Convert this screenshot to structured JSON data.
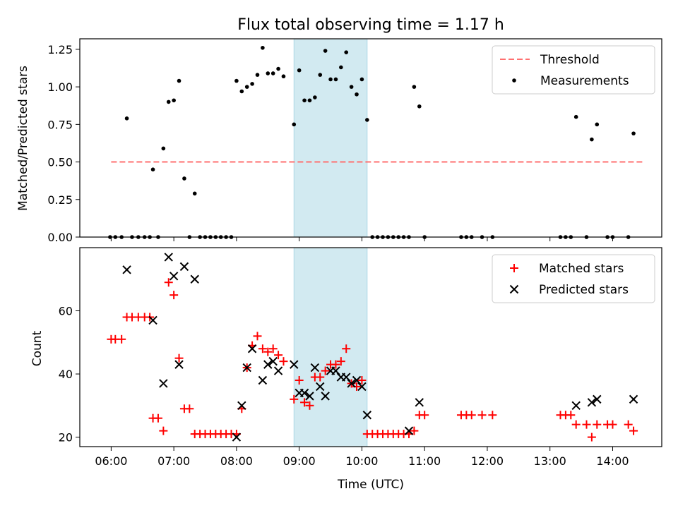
{
  "chart_data": [
    {
      "type": "scatter",
      "title": "Flux total observing time = 1.17 h",
      "xlabel": "",
      "ylabel": "Matched/Predicted stars",
      "ylim": [
        0,
        1.32
      ],
      "yticks": [
        0.0,
        0.25,
        0.5,
        0.75,
        1.0,
        1.25
      ],
      "ytick_labels": [
        "0.00",
        "0.25",
        "0.50",
        "0.75",
        "1.00",
        "1.25"
      ],
      "shaded_span": {
        "start": "08:55",
        "end": "10:05",
        "color": "#add8e6"
      },
      "threshold": {
        "name": "Threshold",
        "value": 0.5,
        "from": "06:00",
        "to": "14:30",
        "color": "#ff7070"
      },
      "series": [
        {
          "name": "Measurements",
          "color": "#000000",
          "points": [
            [
              "05:59",
              0
            ],
            [
              "06:04",
              0
            ],
            [
              "06:10",
              0
            ],
            [
              "06:15",
              0.79
            ],
            [
              "06:20",
              0
            ],
            [
              "06:26",
              0
            ],
            [
              "06:32",
              0
            ],
            [
              "06:37",
              0
            ],
            [
              "06:40",
              0.45
            ],
            [
              "06:45",
              0
            ],
            [
              "06:50",
              0.59
            ],
            [
              "06:55",
              0.9
            ],
            [
              "07:00",
              0.91
            ],
            [
              "07:05",
              1.04
            ],
            [
              "07:10",
              0.39
            ],
            [
              "07:15",
              0
            ],
            [
              "07:20",
              0.29
            ],
            [
              "07:25",
              0
            ],
            [
              "07:30",
              0
            ],
            [
              "07:35",
              0
            ],
            [
              "07:40",
              0
            ],
            [
              "07:45",
              0
            ],
            [
              "07:50",
              0
            ],
            [
              "07:55",
              0
            ],
            [
              "08:00",
              1.04
            ],
            [
              "08:05",
              0.97
            ],
            [
              "08:10",
              1.0
            ],
            [
              "08:15",
              1.02
            ],
            [
              "08:20",
              1.08
            ],
            [
              "08:25",
              1.26
            ],
            [
              "08:30",
              1.09
            ],
            [
              "08:35",
              1.09
            ],
            [
              "08:40",
              1.12
            ],
            [
              "08:45",
              1.07
            ],
            [
              "08:55",
              0.75
            ],
            [
              "09:00",
              1.11
            ],
            [
              "09:05",
              0.91
            ],
            [
              "09:10",
              0.91
            ],
            [
              "09:15",
              0.93
            ],
            [
              "09:20",
              1.08
            ],
            [
              "09:25",
              1.24
            ],
            [
              "09:30",
              1.05
            ],
            [
              "09:35",
              1.05
            ],
            [
              "09:40",
              1.13
            ],
            [
              "09:45",
              1.23
            ],
            [
              "09:50",
              1.0
            ],
            [
              "09:55",
              0.95
            ],
            [
              "10:00",
              1.05
            ],
            [
              "10:05",
              0.78
            ],
            [
              "10:10",
              0
            ],
            [
              "10:15",
              0
            ],
            [
              "10:20",
              0
            ],
            [
              "10:25",
              0
            ],
            [
              "10:30",
              0
            ],
            [
              "10:35",
              0
            ],
            [
              "10:40",
              0
            ],
            [
              "10:45",
              0
            ],
            [
              "10:50",
              1.0
            ],
            [
              "10:55",
              0.87
            ],
            [
              "11:00",
              0
            ],
            [
              "11:35",
              0
            ],
            [
              "11:40",
              0
            ],
            [
              "11:45",
              0
            ],
            [
              "11:55",
              0
            ],
            [
              "12:05",
              0
            ],
            [
              "13:10",
              0
            ],
            [
              "13:15",
              0
            ],
            [
              "13:20",
              0
            ],
            [
              "13:25",
              0.8
            ],
            [
              "13:35",
              0
            ],
            [
              "13:40",
              0.65
            ],
            [
              "13:45",
              0.75
            ],
            [
              "13:55",
              0
            ],
            [
              "14:00",
              0
            ],
            [
              "14:15",
              0
            ],
            [
              "14:20",
              0.69
            ]
          ]
        }
      ],
      "legend": {
        "entries": [
          "Threshold",
          "Measurements"
        ],
        "location": "upper right"
      }
    },
    {
      "type": "scatter",
      "title": "",
      "xlabel": "Time (UTC)",
      "ylabel": "Count",
      "xlim": [
        "05:30",
        "14:47"
      ],
      "xticks": [
        "06:00",
        "07:00",
        "08:00",
        "09:00",
        "10:00",
        "11:00",
        "12:00",
        "13:00",
        "14:00"
      ],
      "ylim": [
        17,
        80
      ],
      "yticks": [
        20,
        40,
        60
      ],
      "ytick_labels": [
        "20",
        "40",
        "60"
      ],
      "shaded_span": {
        "start": "08:55",
        "end": "10:05",
        "color": "#add8e6"
      },
      "series": [
        {
          "name": "Matched stars",
          "marker": "+",
          "color": "#ff0000",
          "points": [
            [
              "06:00",
              51
            ],
            [
              "06:04",
              51
            ],
            [
              "06:10",
              51
            ],
            [
              "06:15",
              58
            ],
            [
              "06:20",
              58
            ],
            [
              "06:26",
              58
            ],
            [
              "06:32",
              58
            ],
            [
              "06:37",
              58
            ],
            [
              "06:40",
              26
            ],
            [
              "06:45",
              26
            ],
            [
              "06:50",
              22
            ],
            [
              "06:55",
              69
            ],
            [
              "07:00",
              65
            ],
            [
              "07:05",
              45
            ],
            [
              "07:10",
              29
            ],
            [
              "07:15",
              29
            ],
            [
              "07:20",
              21
            ],
            [
              "07:25",
              21
            ],
            [
              "07:30",
              21
            ],
            [
              "07:35",
              21
            ],
            [
              "07:40",
              21
            ],
            [
              "07:45",
              21
            ],
            [
              "07:50",
              21
            ],
            [
              "07:55",
              21
            ],
            [
              "08:00",
              21
            ],
            [
              "08:05",
              29
            ],
            [
              "08:10",
              42
            ],
            [
              "08:15",
              49
            ],
            [
              "08:20",
              52
            ],
            [
              "08:25",
              48
            ],
            [
              "08:30",
              47
            ],
            [
              "08:35",
              48
            ],
            [
              "08:40",
              46
            ],
            [
              "08:45",
              44
            ],
            [
              "08:55",
              32
            ],
            [
              "09:00",
              38
            ],
            [
              "09:05",
              31
            ],
            [
              "09:10",
              30
            ],
            [
              "09:15",
              39
            ],
            [
              "09:20",
              39
            ],
            [
              "09:25",
              41
            ],
            [
              "09:30",
              43
            ],
            [
              "09:35",
              43
            ],
            [
              "09:40",
              44
            ],
            [
              "09:45",
              48
            ],
            [
              "09:50",
              37
            ],
            [
              "09:55",
              36
            ],
            [
              "10:00",
              38
            ],
            [
              "10:05",
              21
            ],
            [
              "10:10",
              21
            ],
            [
              "10:15",
              21
            ],
            [
              "10:20",
              21
            ],
            [
              "10:25",
              21
            ],
            [
              "10:30",
              21
            ],
            [
              "10:35",
              21
            ],
            [
              "10:40",
              21
            ],
            [
              "10:45",
              21
            ],
            [
              "10:50",
              22
            ],
            [
              "10:55",
              27
            ],
            [
              "11:00",
              27
            ],
            [
              "11:35",
              27
            ],
            [
              "11:40",
              27
            ],
            [
              "11:45",
              27
            ],
            [
              "11:55",
              27
            ],
            [
              "12:05",
              27
            ],
            [
              "13:10",
              27
            ],
            [
              "13:15",
              27
            ],
            [
              "13:20",
              27
            ],
            [
              "13:25",
              24
            ],
            [
              "13:35",
              24
            ],
            [
              "13:40",
              20
            ],
            [
              "13:45",
              24
            ],
            [
              "13:55",
              24
            ],
            [
              "14:00",
              24
            ],
            [
              "14:15",
              24
            ],
            [
              "14:20",
              22
            ]
          ]
        },
        {
          "name": "Predicted stars",
          "marker": "x",
          "color": "#000000",
          "points": [
            [
              "06:15",
              73
            ],
            [
              "06:40",
              57
            ],
            [
              "06:50",
              37
            ],
            [
              "06:55",
              77
            ],
            [
              "07:00",
              71
            ],
            [
              "07:05",
              43
            ],
            [
              "07:10",
              74
            ],
            [
              "07:20",
              70
            ],
            [
              "08:00",
              20
            ],
            [
              "08:05",
              30
            ],
            [
              "08:10",
              42
            ],
            [
              "08:15",
              48
            ],
            [
              "08:25",
              38
            ],
            [
              "08:30",
              43
            ],
            [
              "08:35",
              44
            ],
            [
              "08:40",
              41
            ],
            [
              "08:55",
              43
            ],
            [
              "09:00",
              34
            ],
            [
              "09:05",
              34
            ],
            [
              "09:10",
              33
            ],
            [
              "09:15",
              42
            ],
            [
              "09:20",
              36
            ],
            [
              "09:25",
              33
            ],
            [
              "09:30",
              41
            ],
            [
              "09:35",
              41
            ],
            [
              "09:40",
              39
            ],
            [
              "09:45",
              39
            ],
            [
              "09:50",
              37
            ],
            [
              "09:55",
              38
            ],
            [
              "10:00",
              36
            ],
            [
              "10:05",
              27
            ],
            [
              "10:45",
              22
            ],
            [
              "10:55",
              31
            ],
            [
              "13:25",
              30
            ],
            [
              "13:40",
              31
            ],
            [
              "13:45",
              32
            ],
            [
              "14:20",
              32
            ]
          ]
        }
      ],
      "legend": {
        "entries": [
          "Matched stars",
          "Predicted stars"
        ],
        "location": "upper right"
      }
    }
  ]
}
